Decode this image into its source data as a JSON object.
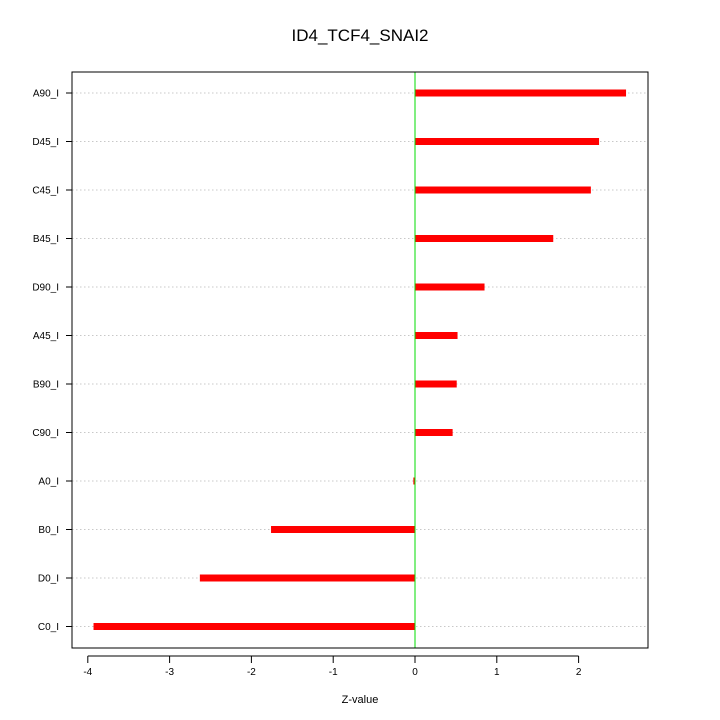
{
  "chart_data": {
    "type": "bar",
    "orientation": "horizontal",
    "title": "ID4_TCF4_SNAI2",
    "xlabel": "Z-value",
    "ylabel": "",
    "xlim": [
      -4.1,
      2.85
    ],
    "xticks": [
      -4,
      -3,
      -2,
      -1,
      0,
      1,
      2
    ],
    "reference_line": 0,
    "categories": [
      "A90_I",
      "D45_I",
      "C45_I",
      "B45_I",
      "D90_I",
      "A45_I",
      "B90_I",
      "C90_I",
      "A0_I",
      "B0_I",
      "D0_I",
      "C0_I"
    ],
    "values": [
      2.58,
      2.25,
      2.15,
      1.69,
      0.85,
      0.52,
      0.51,
      0.46,
      -0.02,
      -1.76,
      -2.63,
      -3.93
    ],
    "grid": "horizontal dotted",
    "colors": {
      "bar": "#ff0000",
      "zero_line": "#00dd00",
      "grid": "#c8c8c8",
      "axis": "#000000"
    }
  }
}
